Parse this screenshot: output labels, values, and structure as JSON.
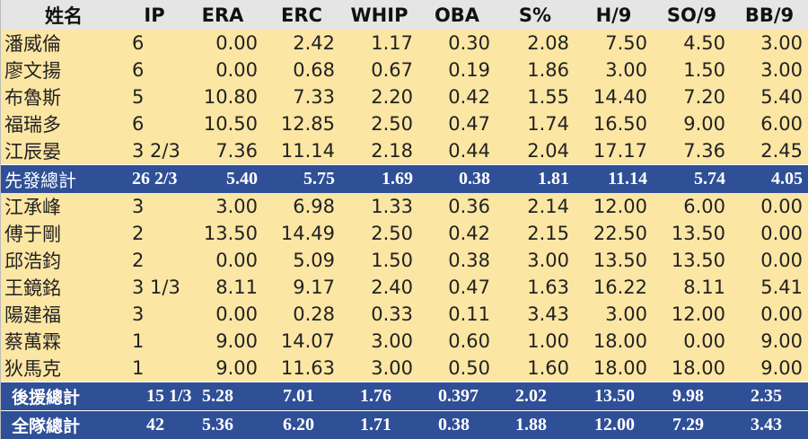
{
  "headers": [
    "姓名",
    "IP",
    "ERA",
    "ERC",
    "WHIP",
    "OBA",
    "S%",
    "H/9",
    "SO/9",
    "BB/9"
  ],
  "starters": [
    [
      "潘威倫",
      "6",
      "0.00",
      "2.42",
      "1.17",
      "0.30",
      "2.08",
      "7.50",
      "4.50",
      "3.00"
    ],
    [
      "廖文揚",
      "6",
      "0.00",
      "0.68",
      "0.67",
      "0.19",
      "1.86",
      "3.00",
      "1.50",
      "3.00"
    ],
    [
      "布魯斯",
      "5",
      "10.80",
      "7.33",
      "2.20",
      "0.42",
      "1.55",
      "14.40",
      "7.20",
      "5.40"
    ],
    [
      "福瑞多",
      "6",
      "10.50",
      "12.85",
      "2.50",
      "0.47",
      "1.74",
      "16.50",
      "9.00",
      "6.00"
    ],
    [
      "江辰晏",
      "3 2/3",
      "7.36",
      "11.14",
      "2.18",
      "0.44",
      "2.04",
      "17.17",
      "7.36",
      "2.45"
    ]
  ],
  "starter_total": [
    "先發總計",
    "26 2/3",
    "5.40",
    "5.75",
    "1.69",
    "0.38",
    "1.81",
    "11.14",
    "5.74",
    "4.05"
  ],
  "relievers": [
    [
      "江承峰",
      "3",
      "3.00",
      "6.98",
      "1.33",
      "0.36",
      "2.14",
      "12.00",
      "6.00",
      "0.00"
    ],
    [
      "傅于剛",
      "2",
      "13.50",
      "14.49",
      "2.50",
      "0.42",
      "2.15",
      "22.50",
      "13.50",
      "0.00"
    ],
    [
      "邱浩鈞",
      "2",
      "0.00",
      "5.09",
      "1.50",
      "0.38",
      "3.00",
      "13.50",
      "13.50",
      "0.00"
    ],
    [
      "王鏡銘",
      "3 1/3",
      "8.11",
      "9.17",
      "2.40",
      "0.47",
      "1.63",
      "16.22",
      "8.11",
      "5.41"
    ],
    [
      "陽建福",
      "3",
      "0.00",
      "0.28",
      "0.33",
      "0.11",
      "3.43",
      "3.00",
      "12.00",
      "0.00"
    ],
    [
      "蔡萬霖",
      "1",
      "9.00",
      "14.07",
      "3.00",
      "0.60",
      "1.00",
      "18.00",
      "0.00",
      "9.00"
    ],
    [
      "狄馬克",
      "1",
      "9.00",
      "11.63",
      "3.00",
      "0.50",
      "1.60",
      "18.00",
      "18.00",
      "9.00"
    ]
  ],
  "reliever_total": [
    "後援總計",
    "15 1/3",
    "5.28",
    "7.01",
    "1.76",
    "0.397",
    "2.02",
    "13.50",
    "9.98",
    "2.35"
  ],
  "team_total": [
    "全隊總計",
    "42",
    "5.36",
    "6.20",
    "1.71",
    "0.38",
    "1.88",
    "12.00",
    "7.29",
    "3.43"
  ]
}
